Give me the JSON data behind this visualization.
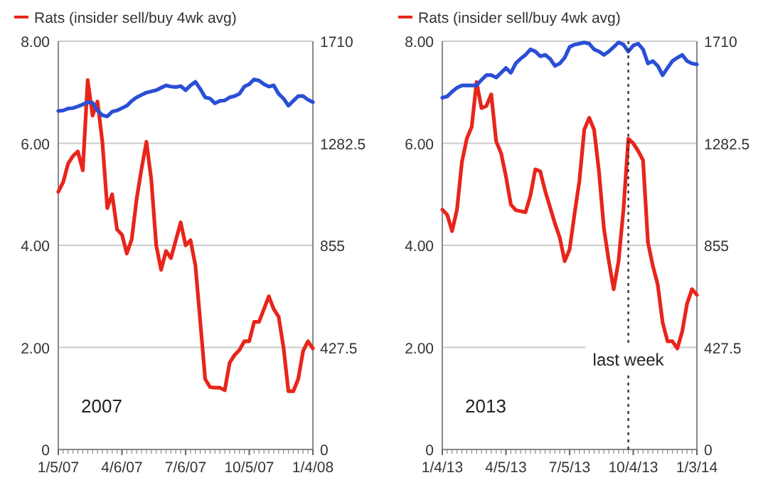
{
  "chart_data": [
    {
      "type": "line",
      "legend": "top",
      "grid": "y",
      "annotations": [
        "2007"
      ],
      "x": [
        "2007-01-05",
        "2007-01-12",
        "2007-01-19",
        "2007-01-26",
        "2007-02-02",
        "2007-02-09",
        "2007-02-16",
        "2007-02-23",
        "2007-03-02",
        "2007-03-09",
        "2007-03-16",
        "2007-03-23",
        "2007-03-30",
        "2007-04-06",
        "2007-04-13",
        "2007-04-20",
        "2007-04-27",
        "2007-05-04",
        "2007-05-11",
        "2007-05-18",
        "2007-05-25",
        "2007-06-01",
        "2007-06-08",
        "2007-06-15",
        "2007-06-22",
        "2007-06-29",
        "2007-07-06",
        "2007-07-13",
        "2007-07-20",
        "2007-07-27",
        "2007-08-03",
        "2007-08-10",
        "2007-08-17",
        "2007-08-24",
        "2007-08-31",
        "2007-09-07",
        "2007-09-14",
        "2007-09-21",
        "2007-09-28",
        "2007-10-05",
        "2007-10-12",
        "2007-10-19",
        "2007-10-26",
        "2007-11-02",
        "2007-11-09",
        "2007-11-16",
        "2007-11-23",
        "2007-11-30",
        "2007-12-07",
        "2007-12-14",
        "2007-12-21",
        "2007-12-28",
        "2008-01-04"
      ],
      "xlim": [
        "2007-01-05",
        "2008-01-04"
      ],
      "xticks": [
        {
          "value": "2007-01-05",
          "label": "1/5/07"
        },
        {
          "value": "2007-04-06",
          "label": "4/6/07"
        },
        {
          "value": "2007-07-06",
          "label": "7/6/07"
        },
        {
          "value": "2007-10-05",
          "label": "10/5/07"
        },
        {
          "value": "2008-01-04",
          "label": "1/4/08"
        }
      ],
      "ylim": [
        0,
        8
      ],
      "yticks": [
        0,
        {
          "value": 2,
          "label": "2.00"
        },
        {
          "value": 4,
          "label": "4.00"
        },
        {
          "value": 6,
          "label": "6.00"
        },
        {
          "value": 8,
          "label": "8.00"
        }
      ],
      "y2lim": [
        0,
        1710
      ],
      "y2ticks": [
        0,
        427.5,
        855,
        1282.5,
        1710
      ],
      "series": [
        {
          "name": "Rats (insider sell/buy 4wk avg)",
          "color": "#e8251b",
          "values": [
            5.05,
            5.24,
            5.6,
            5.75,
            5.84,
            5.47,
            7.24,
            6.54,
            6.82,
            6.03,
            4.73,
            5.0,
            4.31,
            4.21,
            3.84,
            4.12,
            4.91,
            5.5,
            6.03,
            5.28,
            4.0,
            3.52,
            3.89,
            3.75,
            4.1,
            4.45,
            4.0,
            4.1,
            3.61,
            2.5,
            1.38,
            1.22,
            1.21,
            1.21,
            1.16,
            1.7,
            1.85,
            1.95,
            2.12,
            2.12,
            2.5,
            2.5,
            2.75,
            3.0,
            2.75,
            2.6,
            2.0,
            1.14,
            1.14,
            1.38,
            1.93,
            2.12,
            1.98
          ]
        },
        {
          "color": "#2a4fd6",
          "axis": "y2",
          "values": [
            1418,
            1420,
            1428,
            1430,
            1437,
            1445,
            1455,
            1452,
            1420,
            1400,
            1395,
            1415,
            1420,
            1430,
            1440,
            1460,
            1475,
            1485,
            1495,
            1500,
            1505,
            1515,
            1525,
            1520,
            1518,
            1522,
            1505,
            1525,
            1540,
            1510,
            1475,
            1470,
            1450,
            1460,
            1462,
            1475,
            1480,
            1490,
            1520,
            1530,
            1550,
            1545,
            1530,
            1520,
            1525,
            1490,
            1470,
            1440,
            1460,
            1480,
            1480,
            1465,
            1455
          ]
        }
      ]
    },
    {
      "type": "line",
      "legend": "top",
      "grid": "y",
      "annotations": [
        "2013"
      ],
      "x": [
        "2013-01-04",
        "2013-01-11",
        "2013-01-18",
        "2013-01-25",
        "2013-02-01",
        "2013-02-08",
        "2013-02-15",
        "2013-02-22",
        "2013-03-01",
        "2013-03-08",
        "2013-03-15",
        "2013-03-22",
        "2013-03-29",
        "2013-04-05",
        "2013-04-12",
        "2013-04-19",
        "2013-04-26",
        "2013-05-03",
        "2013-05-10",
        "2013-05-17",
        "2013-05-24",
        "2013-05-31",
        "2013-06-07",
        "2013-06-14",
        "2013-06-21",
        "2013-06-28",
        "2013-07-05",
        "2013-07-12",
        "2013-07-19",
        "2013-07-26",
        "2013-08-02",
        "2013-08-09",
        "2013-08-16",
        "2013-08-23",
        "2013-08-30",
        "2013-09-06",
        "2013-09-13",
        "2013-09-20",
        "2013-09-27",
        "2013-10-04",
        "2013-10-11",
        "2013-10-18",
        "2013-10-25",
        "2013-11-01",
        "2013-11-08",
        "2013-11-15",
        "2013-11-22",
        "2013-11-29",
        "2013-12-06",
        "2013-12-13",
        "2013-12-20",
        "2013-12-27",
        "2014-01-03"
      ],
      "xlim": [
        "2013-01-04",
        "2014-01-03"
      ],
      "xticks": [
        {
          "value": "2013-01-04",
          "label": "1/4/13"
        },
        {
          "value": "2013-04-05",
          "label": "4/5/13"
        },
        {
          "value": "2013-07-05",
          "label": "7/5/13"
        },
        {
          "value": "2013-10-04",
          "label": "10/4/13"
        },
        {
          "value": "2014-01-03",
          "label": "1/3/14"
        }
      ],
      "ylim": [
        0,
        8
      ],
      "yticks": [
        0,
        {
          "value": 2,
          "label": "2.00"
        },
        {
          "value": 4,
          "label": "4.00"
        },
        {
          "value": 6,
          "label": "6.00"
        },
        {
          "value": 8,
          "label": "8.00"
        }
      ],
      "y2lim": [
        0,
        1710
      ],
      "y2ticks": [
        0,
        427.5,
        855,
        1282.5,
        1710
      ],
      "ref_lines": [
        {
          "axis": "x",
          "value": "2013-09-27",
          "label": "last week",
          "line_style": "dotted"
        }
      ],
      "series": [
        {
          "name": "Rats (insider sell/buy 4wk avg)",
          "color": "#e8251b",
          "values": [
            4.7,
            4.6,
            4.28,
            4.7,
            5.63,
            6.09,
            6.32,
            7.2,
            6.69,
            6.73,
            6.96,
            6.04,
            5.81,
            5.35,
            4.8,
            4.69,
            4.67,
            4.65,
            4.98,
            5.49,
            5.45,
            5.07,
            4.75,
            4.43,
            4.15,
            3.69,
            3.92,
            4.61,
            5.26,
            6.27,
            6.5,
            6.27,
            5.45,
            4.34,
            3.7,
            3.14,
            3.69,
            4.7,
            6.09,
            6.0,
            5.85,
            5.67,
            4.06,
            3.6,
            3.23,
            2.49,
            2.12,
            2.12,
            1.98,
            2.31,
            2.86,
            3.14,
            3.03
          ]
        },
        {
          "color": "#2a4fd6",
          "axis": "y2",
          "values": [
            1473,
            1479,
            1499,
            1515,
            1525,
            1525,
            1525,
            1525,
            1548,
            1568,
            1568,
            1558,
            1578,
            1598,
            1578,
            1617,
            1637,
            1653,
            1676,
            1667,
            1647,
            1653,
            1637,
            1607,
            1617,
            1641,
            1686,
            1696,
            1700,
            1705,
            1700,
            1676,
            1667,
            1653,
            1667,
            1686,
            1705,
            1696,
            1667,
            1692,
            1700,
            1676,
            1617,
            1627,
            1607,
            1568,
            1598,
            1627,
            1641,
            1653,
            1627,
            1617,
            1613
          ]
        }
      ]
    }
  ]
}
